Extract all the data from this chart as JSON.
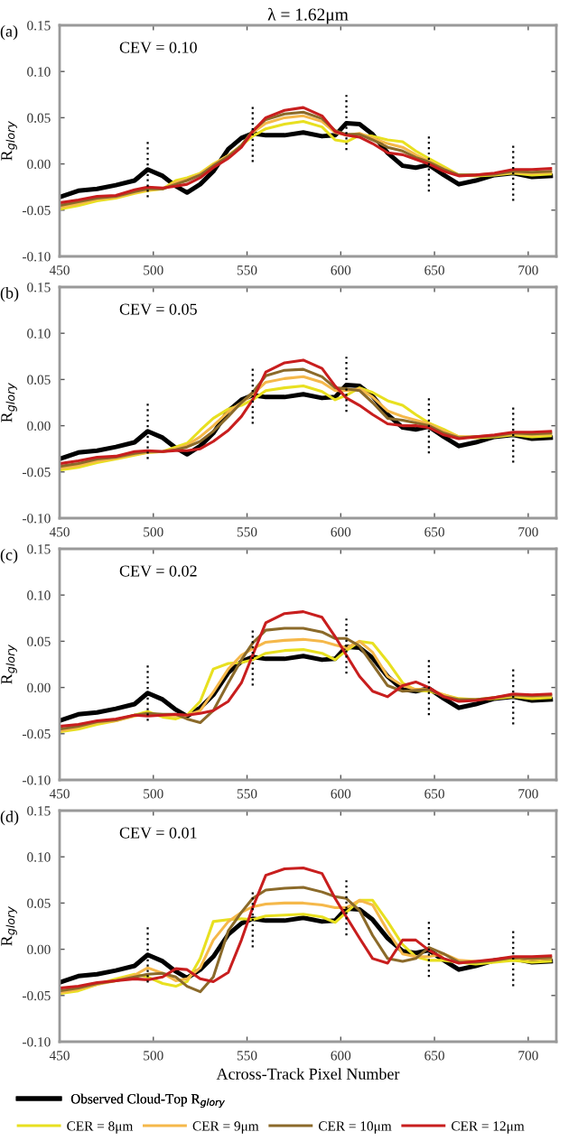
{
  "chart_data": [
    {
      "type": "line",
      "title": "λ = 1.62μm",
      "ylabel": "R$_{glory}$",
      "annotations": [
        "(a)",
        "CEV = 0.10"
      ],
      "x": [
        450,
        460,
        470,
        480,
        490,
        497,
        505,
        512,
        518,
        525,
        532,
        540,
        547,
        553,
        560,
        570,
        580,
        590,
        597,
        603,
        610,
        617,
        625,
        633,
        640,
        647,
        655,
        663,
        672,
        682,
        692,
        702,
        712
      ],
      "xlim": [
        450,
        715
      ],
      "ylim": [
        -0.1,
        0.15
      ],
      "xticks": [
        450,
        500,
        550,
        600,
        650,
        700
      ],
      "yticks": [
        {
          "value": -0.1,
          "label": "-0.10"
        },
        {
          "value": -0.05,
          "label": "-0.05"
        },
        {
          "value": 0,
          "label": "0.00"
        },
        {
          "value": 0.05,
          "label": "0.05"
        },
        {
          "value": 0.1,
          "label": "0.10"
        },
        {
          "value": 0.15,
          "label": "0.15"
        }
      ],
      "grid": false,
      "series": [
        {
          "color": "#000000",
          "values": [
            -0.036,
            -0.029,
            -0.027,
            -0.023,
            -0.018,
            -0.006,
            -0.013,
            -0.024,
            -0.031,
            -0.022,
            -0.008,
            0.016,
            0.028,
            0.033,
            0.031,
            0.031,
            0.034,
            0.03,
            0.031,
            0.044,
            0.043,
            0.032,
            0.012,
            -0.002,
            -0.004,
            -0.001,
            -0.012,
            -0.022,
            -0.018,
            -0.012,
            -0.01,
            -0.014,
            -0.013
          ]
        },
        {
          "color": "#e8e020",
          "values": [
            -0.049,
            -0.045,
            -0.04,
            -0.037,
            -0.032,
            -0.029,
            -0.027,
            -0.018,
            -0.015,
            -0.01,
            0.0,
            0.009,
            0.02,
            0.03,
            0.038,
            0.043,
            0.046,
            0.04,
            0.026,
            0.024,
            0.031,
            0.03,
            0.026,
            0.024,
            0.014,
            0.006,
            -0.003,
            -0.012,
            -0.013,
            -0.012,
            -0.01,
            -0.012,
            -0.011
          ]
        },
        {
          "color": "#f5b84a",
          "values": [
            -0.047,
            -0.043,
            -0.038,
            -0.036,
            -0.031,
            -0.028,
            -0.027,
            -0.02,
            -0.017,
            -0.011,
            -0.001,
            0.009,
            0.02,
            0.034,
            0.044,
            0.05,
            0.052,
            0.046,
            0.034,
            0.031,
            0.033,
            0.028,
            0.022,
            0.018,
            0.01,
            0.003,
            -0.005,
            -0.012,
            -0.012,
            -0.011,
            -0.009,
            -0.01,
            -0.009
          ]
        },
        {
          "color": "#8b6a2a",
          "values": [
            -0.045,
            -0.041,
            -0.037,
            -0.035,
            -0.03,
            -0.027,
            -0.027,
            -0.022,
            -0.018,
            -0.012,
            -0.002,
            0.008,
            0.02,
            0.036,
            0.048,
            0.054,
            0.056,
            0.049,
            0.036,
            0.032,
            0.032,
            0.026,
            0.018,
            0.014,
            0.007,
            0.002,
            -0.006,
            -0.012,
            -0.012,
            -0.011,
            -0.008,
            -0.009,
            -0.008
          ]
        },
        {
          "color": "#c81e1e",
          "values": [
            -0.042,
            -0.039,
            -0.035,
            -0.034,
            -0.028,
            -0.025,
            -0.026,
            -0.024,
            -0.022,
            -0.015,
            -0.004,
            0.006,
            0.018,
            0.035,
            0.05,
            0.058,
            0.061,
            0.052,
            0.035,
            0.031,
            0.029,
            0.022,
            0.012,
            0.01,
            0.005,
            0.0,
            -0.008,
            -0.013,
            -0.012,
            -0.01,
            -0.006,
            -0.006,
            -0.005
          ]
        },
        {
          "color": "#000000",
          "line_style": "dotted",
          "x": [
            497,
            497
          ],
          "values": [
            -0.036,
            0.024
          ]
        },
        {
          "color": "#000000",
          "line_style": "dotted",
          "x": [
            553,
            553
          ],
          "values": [
            0.002,
            0.062
          ]
        },
        {
          "color": "#000000",
          "line_style": "dotted",
          "x": [
            603,
            603
          ],
          "values": [
            0.015,
            0.075
          ]
        },
        {
          "color": "#000000",
          "line_style": "dotted",
          "x": [
            647,
            647
          ],
          "values": [
            -0.03,
            0.03
          ]
        },
        {
          "color": "#000000",
          "line_style": "dotted",
          "x": [
            692,
            692
          ],
          "values": [
            -0.04,
            0.02
          ]
        }
      ]
    },
    {
      "type": "line",
      "ylabel": "R$_{glory}$",
      "annotations": [
        "(b)",
        "CEV = 0.05"
      ],
      "x": [
        450,
        460,
        470,
        480,
        490,
        497,
        505,
        512,
        518,
        525,
        532,
        540,
        547,
        553,
        560,
        570,
        580,
        590,
        597,
        603,
        610,
        617,
        625,
        633,
        640,
        647,
        655,
        663,
        672,
        682,
        692,
        702,
        712
      ],
      "xlim": [
        450,
        715
      ],
      "ylim": [
        -0.1,
        0.15
      ],
      "xticks": [
        450,
        500,
        550,
        600,
        650,
        700
      ],
      "yticks": [
        {
          "value": -0.1,
          "label": "-0.10"
        },
        {
          "value": -0.05,
          "label": "-0.05"
        },
        {
          "value": 0,
          "label": "0.00"
        },
        {
          "value": 0.05,
          "label": "0.05"
        },
        {
          "value": 0.1,
          "label": "0.10"
        },
        {
          "value": 0.15,
          "label": "0.15"
        }
      ],
      "grid": false,
      "series": [
        {
          "color": "#000000",
          "values": [
            -0.036,
            -0.029,
            -0.027,
            -0.023,
            -0.018,
            -0.006,
            -0.013,
            -0.024,
            -0.031,
            -0.022,
            -0.008,
            0.016,
            0.028,
            0.033,
            0.031,
            0.031,
            0.034,
            0.03,
            0.031,
            0.044,
            0.043,
            0.032,
            0.012,
            -0.002,
            -0.004,
            -0.001,
            -0.012,
            -0.022,
            -0.018,
            -0.012,
            -0.01,
            -0.014,
            -0.013
          ]
        },
        {
          "color": "#e8e020",
          "values": [
            -0.048,
            -0.045,
            -0.04,
            -0.036,
            -0.032,
            -0.029,
            -0.028,
            -0.023,
            -0.019,
            -0.005,
            0.008,
            0.018,
            0.022,
            0.028,
            0.038,
            0.041,
            0.043,
            0.037,
            0.028,
            0.033,
            0.041,
            0.036,
            0.027,
            0.022,
            0.012,
            0.003,
            -0.004,
            -0.012,
            -0.013,
            -0.012,
            -0.01,
            -0.012,
            -0.011
          ]
        },
        {
          "color": "#f5b84a",
          "values": [
            -0.046,
            -0.043,
            -0.038,
            -0.035,
            -0.031,
            -0.029,
            -0.028,
            -0.025,
            -0.021,
            -0.012,
            0.0,
            0.015,
            0.025,
            0.034,
            0.047,
            0.051,
            0.053,
            0.047,
            0.038,
            0.038,
            0.04,
            0.031,
            0.016,
            0.01,
            0.006,
            0.002,
            -0.006,
            -0.012,
            -0.012,
            -0.011,
            -0.009,
            -0.01,
            -0.009
          ]
        },
        {
          "color": "#8b6a2a",
          "values": [
            -0.044,
            -0.041,
            -0.036,
            -0.034,
            -0.03,
            -0.028,
            -0.028,
            -0.026,
            -0.023,
            -0.017,
            -0.006,
            0.01,
            0.025,
            0.036,
            0.054,
            0.06,
            0.061,
            0.053,
            0.041,
            0.04,
            0.038,
            0.025,
            0.008,
            0.006,
            0.003,
            0.0,
            -0.008,
            -0.013,
            -0.012,
            -0.011,
            -0.008,
            -0.009,
            -0.008
          ]
        },
        {
          "color": "#c81e1e",
          "values": [
            -0.041,
            -0.038,
            -0.034,
            -0.033,
            -0.028,
            -0.027,
            -0.028,
            -0.027,
            -0.027,
            -0.025,
            -0.017,
            -0.005,
            0.01,
            0.028,
            0.058,
            0.068,
            0.071,
            0.062,
            0.043,
            0.03,
            0.022,
            0.012,
            0.002,
            0.0,
            0.0,
            -0.002,
            -0.01,
            -0.014,
            -0.012,
            -0.01,
            -0.007,
            -0.007,
            -0.006
          ]
        },
        {
          "color": "#000000",
          "line_style": "dotted",
          "x": [
            497,
            497
          ],
          "values": [
            -0.036,
            0.024
          ]
        },
        {
          "color": "#000000",
          "line_style": "dotted",
          "x": [
            553,
            553
          ],
          "values": [
            0.002,
            0.062
          ]
        },
        {
          "color": "#000000",
          "line_style": "dotted",
          "x": [
            603,
            603
          ],
          "values": [
            0.015,
            0.075
          ]
        },
        {
          "color": "#000000",
          "line_style": "dotted",
          "x": [
            647,
            647
          ],
          "values": [
            -0.03,
            0.03
          ]
        },
        {
          "color": "#000000",
          "line_style": "dotted",
          "x": [
            692,
            692
          ],
          "values": [
            -0.04,
            0.02
          ]
        }
      ]
    },
    {
      "type": "line",
      "ylabel": "R$_{glory}$",
      "annotations": [
        "(c)",
        "CEV = 0.02"
      ],
      "x": [
        450,
        460,
        470,
        480,
        490,
        497,
        505,
        512,
        518,
        525,
        532,
        540,
        547,
        553,
        560,
        570,
        580,
        590,
        597,
        603,
        610,
        617,
        625,
        633,
        640,
        647,
        655,
        663,
        672,
        682,
        692,
        702,
        712
      ],
      "xlim": [
        450,
        715
      ],
      "ylim": [
        -0.1,
        0.15
      ],
      "xticks": [
        450,
        500,
        550,
        600,
        650,
        700
      ],
      "yticks": [
        {
          "value": -0.1,
          "label": "-0.10"
        },
        {
          "value": -0.05,
          "label": "-0.05"
        },
        {
          "value": 0,
          "label": "0.00"
        },
        {
          "value": 0.05,
          "label": "0.05"
        },
        {
          "value": 0.1,
          "label": "0.10"
        },
        {
          "value": 0.15,
          "label": "0.15"
        }
      ],
      "grid": false,
      "series": [
        {
          "color": "#000000",
          "values": [
            -0.036,
            -0.029,
            -0.027,
            -0.023,
            -0.018,
            -0.006,
            -0.013,
            -0.024,
            -0.031,
            -0.022,
            -0.008,
            0.016,
            0.028,
            0.033,
            0.031,
            0.031,
            0.034,
            0.03,
            0.031,
            0.044,
            0.043,
            0.032,
            0.012,
            -0.002,
            -0.004,
            -0.001,
            -0.012,
            -0.022,
            -0.018,
            -0.012,
            -0.01,
            -0.014,
            -0.013
          ]
        },
        {
          "color": "#e8e020",
          "values": [
            -0.048,
            -0.045,
            -0.04,
            -0.036,
            -0.03,
            -0.026,
            -0.032,
            -0.034,
            -0.03,
            -0.015,
            0.02,
            0.026,
            0.027,
            0.03,
            0.037,
            0.04,
            0.041,
            0.037,
            0.03,
            0.04,
            0.05,
            0.048,
            0.028,
            0.005,
            -0.003,
            -0.004,
            -0.008,
            -0.012,
            -0.013,
            -0.012,
            -0.01,
            -0.012,
            -0.011
          ]
        },
        {
          "color": "#f5b84a",
          "values": [
            -0.047,
            -0.043,
            -0.038,
            -0.036,
            -0.031,
            -0.028,
            -0.03,
            -0.031,
            -0.03,
            -0.025,
            -0.005,
            0.02,
            0.035,
            0.042,
            0.049,
            0.051,
            0.052,
            0.05,
            0.046,
            0.043,
            0.05,
            0.038,
            0.012,
            0.002,
            -0.002,
            -0.002,
            -0.008,
            -0.013,
            -0.013,
            -0.011,
            -0.009,
            -0.01,
            -0.009
          ]
        },
        {
          "color": "#8b6a2a",
          "values": [
            -0.045,
            -0.042,
            -0.037,
            -0.035,
            -0.03,
            -0.028,
            -0.029,
            -0.029,
            -0.034,
            -0.038,
            -0.025,
            0.005,
            0.03,
            0.048,
            0.062,
            0.064,
            0.064,
            0.06,
            0.053,
            0.053,
            0.045,
            0.025,
            0.002,
            -0.004,
            -0.003,
            -0.002,
            -0.01,
            -0.013,
            -0.013,
            -0.011,
            -0.008,
            -0.009,
            -0.008
          ]
        },
        {
          "color": "#c81e1e",
          "values": [
            -0.042,
            -0.04,
            -0.036,
            -0.034,
            -0.03,
            -0.031,
            -0.03,
            -0.029,
            -0.03,
            -0.028,
            -0.025,
            -0.015,
            0.005,
            0.035,
            0.07,
            0.08,
            0.082,
            0.076,
            0.055,
            0.035,
            0.012,
            -0.004,
            -0.01,
            0.002,
            0.006,
            0.0,
            -0.01,
            -0.015,
            -0.014,
            -0.011,
            -0.007,
            -0.008,
            -0.007
          ]
        },
        {
          "color": "#000000",
          "line_style": "dotted",
          "x": [
            497,
            497
          ],
          "values": [
            -0.036,
            0.024
          ]
        },
        {
          "color": "#000000",
          "line_style": "dotted",
          "x": [
            553,
            553
          ],
          "values": [
            0.002,
            0.062
          ]
        },
        {
          "color": "#000000",
          "line_style": "dotted",
          "x": [
            603,
            603
          ],
          "values": [
            0.015,
            0.075
          ]
        },
        {
          "color": "#000000",
          "line_style": "dotted",
          "x": [
            647,
            647
          ],
          "values": [
            -0.03,
            0.03
          ]
        },
        {
          "color": "#000000",
          "line_style": "dotted",
          "x": [
            692,
            692
          ],
          "values": [
            -0.04,
            0.02
          ]
        }
      ]
    },
    {
      "type": "line",
      "ylabel": "R$_{glory}$",
      "xlabel": "Across-Track Pixel Number",
      "annotations": [
        "(d)",
        "CEV = 0.01"
      ],
      "x": [
        450,
        460,
        470,
        480,
        490,
        497,
        505,
        512,
        518,
        525,
        532,
        540,
        547,
        553,
        560,
        570,
        580,
        590,
        597,
        603,
        610,
        617,
        625,
        633,
        640,
        647,
        655,
        663,
        672,
        682,
        692,
        702,
        712
      ],
      "xlim": [
        450,
        715
      ],
      "ylim": [
        -0.1,
        0.15
      ],
      "xticks": [
        450,
        500,
        550,
        600,
        650,
        700
      ],
      "yticks": [
        {
          "value": -0.1,
          "label": "-0.10"
        },
        {
          "value": -0.05,
          "label": "-0.05"
        },
        {
          "value": 0,
          "label": "0.00"
        },
        {
          "value": 0.05,
          "label": "0.05"
        },
        {
          "value": 0.1,
          "label": "0.10"
        },
        {
          "value": 0.15,
          "label": "0.15"
        }
      ],
      "grid": false,
      "legend": "bottom",
      "series": [
        {
          "name": "Observed Cloud-Top R$_{glory}$",
          "color": "#000000",
          "values": [
            -0.036,
            -0.029,
            -0.027,
            -0.023,
            -0.018,
            -0.006,
            -0.013,
            -0.024,
            -0.031,
            -0.022,
            -0.008,
            0.016,
            0.028,
            0.033,
            0.031,
            0.031,
            0.034,
            0.03,
            0.031,
            0.044,
            0.043,
            0.032,
            0.012,
            -0.002,
            -0.004,
            -0.001,
            -0.012,
            -0.022,
            -0.018,
            -0.012,
            -0.01,
            -0.014,
            -0.013
          ]
        },
        {
          "name": "CER = 8μm",
          "color": "#e8e020",
          "values": [
            -0.048,
            -0.045,
            -0.038,
            -0.032,
            -0.027,
            -0.03,
            -0.037,
            -0.04,
            -0.035,
            -0.01,
            0.03,
            0.032,
            0.033,
            0.032,
            0.036,
            0.037,
            0.038,
            0.035,
            0.029,
            0.04,
            0.053,
            0.053,
            0.03,
            0.005,
            -0.008,
            -0.012,
            -0.012,
            -0.014,
            -0.016,
            -0.014,
            -0.012,
            -0.014,
            -0.013
          ]
        },
        {
          "name": "CER = 9μm",
          "color": "#f5b84a",
          "values": [
            -0.047,
            -0.043,
            -0.038,
            -0.034,
            -0.028,
            -0.02,
            -0.026,
            -0.034,
            -0.032,
            -0.02,
            0.01,
            0.03,
            0.04,
            0.046,
            0.049,
            0.05,
            0.05,
            0.048,
            0.045,
            0.045,
            0.053,
            0.048,
            0.02,
            -0.005,
            -0.008,
            -0.008,
            -0.005,
            -0.012,
            -0.013,
            -0.012,
            -0.009,
            -0.011,
            -0.01
          ]
        },
        {
          "name": "CER = 10μm",
          "color": "#8b6a2a",
          "values": [
            -0.045,
            -0.042,
            -0.037,
            -0.034,
            -0.03,
            -0.027,
            -0.026,
            -0.03,
            -0.04,
            -0.046,
            -0.03,
            0.02,
            0.04,
            0.055,
            0.064,
            0.066,
            0.067,
            0.062,
            0.057,
            0.055,
            0.042,
            0.015,
            -0.01,
            -0.013,
            -0.01,
            0.002,
            -0.005,
            -0.014,
            -0.014,
            -0.012,
            -0.009,
            -0.01,
            -0.009
          ]
        },
        {
          "name": "CER = 12μm",
          "color": "#c81e1e",
          "values": [
            -0.042,
            -0.04,
            -0.036,
            -0.034,
            -0.032,
            -0.033,
            -0.03,
            -0.021,
            -0.022,
            -0.032,
            -0.035,
            -0.025,
            0.01,
            0.045,
            0.08,
            0.087,
            0.088,
            0.082,
            0.055,
            0.035,
            0.012,
            -0.01,
            -0.015,
            0.01,
            0.01,
            -0.001,
            -0.01,
            -0.015,
            -0.013,
            -0.011,
            -0.008,
            -0.008,
            -0.007
          ]
        },
        {
          "color": "#000000",
          "line_style": "dotted",
          "x": [
            497,
            497
          ],
          "values": [
            -0.036,
            0.024
          ]
        },
        {
          "color": "#000000",
          "line_style": "dotted",
          "x": [
            553,
            553
          ],
          "values": [
            0.002,
            0.062
          ]
        },
        {
          "color": "#000000",
          "line_style": "dotted",
          "x": [
            603,
            603
          ],
          "values": [
            0.015,
            0.075
          ]
        },
        {
          "color": "#000000",
          "line_style": "dotted",
          "x": [
            647,
            647
          ],
          "values": [
            -0.03,
            0.03
          ]
        },
        {
          "color": "#000000",
          "line_style": "dotted",
          "x": [
            692,
            692
          ],
          "values": [
            -0.04,
            0.02
          ]
        }
      ]
    }
  ]
}
